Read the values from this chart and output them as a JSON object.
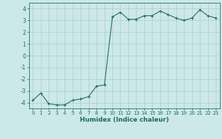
{
  "x": [
    0,
    1,
    2,
    3,
    4,
    5,
    6,
    7,
    8,
    9,
    10,
    11,
    12,
    13,
    14,
    15,
    16,
    17,
    18,
    19,
    20,
    21,
    22,
    23
  ],
  "y": [
    -3.8,
    -3.2,
    -4.1,
    -4.2,
    -4.2,
    -3.8,
    -3.7,
    -3.5,
    -2.6,
    -2.5,
    3.3,
    3.7,
    3.1,
    3.1,
    3.4,
    3.4,
    3.8,
    3.5,
    3.2,
    3.0,
    3.2,
    3.9,
    3.4,
    3.2
  ],
  "xlim": [
    -0.5,
    23.5
  ],
  "ylim": [
    -4.5,
    4.5
  ],
  "yticks": [
    -4,
    -3,
    -2,
    -1,
    0,
    1,
    2,
    3,
    4
  ],
  "xticks": [
    0,
    1,
    2,
    3,
    4,
    5,
    6,
    7,
    8,
    9,
    10,
    11,
    12,
    13,
    14,
    15,
    16,
    17,
    18,
    19,
    20,
    21,
    22,
    23
  ],
  "xlabel": "Humidex (Indice chaleur)",
  "line_color": "#1a6b5e",
  "marker": "+",
  "marker_size": 3,
  "bg_color": "#cce8e8",
  "grid_color": "#aacccc",
  "tick_fontsize": 5.0,
  "xlabel_fontsize": 6.5,
  "ytick_fontsize": 5.5
}
